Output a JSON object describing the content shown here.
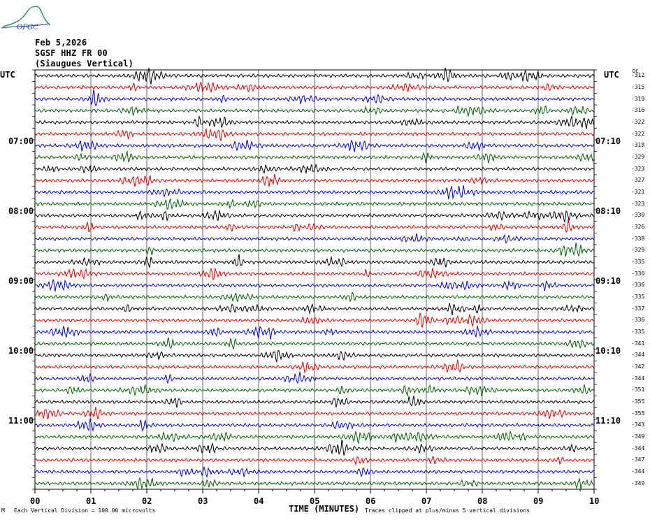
{
  "logo_text": "OFGC",
  "header": {
    "date": "Feb 5,2026",
    "station": "SGSF HHZ FR 00",
    "location": "(Siaugues Vertical)"
  },
  "utc_left": "UTC",
  "utc_right": "UTC",
  "dc_label": "DC",
  "hour_labels_left": [
    "07:00",
    "08:00",
    "09:00",
    "10:00",
    "11:00"
  ],
  "hour_labels_right": [
    "07:10",
    "08:10",
    "09:10",
    "10:10",
    "11:10"
  ],
  "dc_values": [
    "-312",
    "-315",
    "-319",
    "-316",
    "-322",
    "-322",
    "-318",
    "-329",
    "-323",
    "-327",
    "-321",
    "-323",
    "-330",
    "-326",
    "-338",
    "-329",
    "-335",
    "-330",
    "-336",
    "-335",
    "-337",
    "-336",
    "-335",
    "-341",
    "-344",
    "-342",
    "-344",
    "-351",
    "-355",
    "-355",
    "-343",
    "-349",
    "-344",
    "-347",
    "-344",
    "-349"
  ],
  "footer": {
    "xlabel": "TIME (MINUTES)",
    "division_note": "Each Vertical Division =  100.00 microvolts",
    "clip_note": "Traces clipped at plus/minus 5 vertical divisions",
    "corner_mark": "M"
  },
  "colors": {
    "trace_cycle": [
      "#000000",
      "#e00000",
      "#0000d0",
      "#006000"
    ],
    "grid": "#000000",
    "logo_green": "#2e8b57",
    "logo_blue": "#1a3fa0"
  },
  "chart_data": {
    "type": "line",
    "title": "SGSF HHZ FR 00",
    "xlabel": "TIME (MINUTES)",
    "ylabel": "UTC",
    "xlim": [
      0,
      10
    ],
    "x_ticks": [
      "00",
      "01",
      "02",
      "03",
      "04",
      "05",
      "06",
      "07",
      "08",
      "09",
      "10"
    ],
    "traces_per_hour": 4,
    "trace_minutes": 15,
    "trace_count": 36,
    "series": [
      {
        "name": "",
        "values": []
      }
    ]
  }
}
